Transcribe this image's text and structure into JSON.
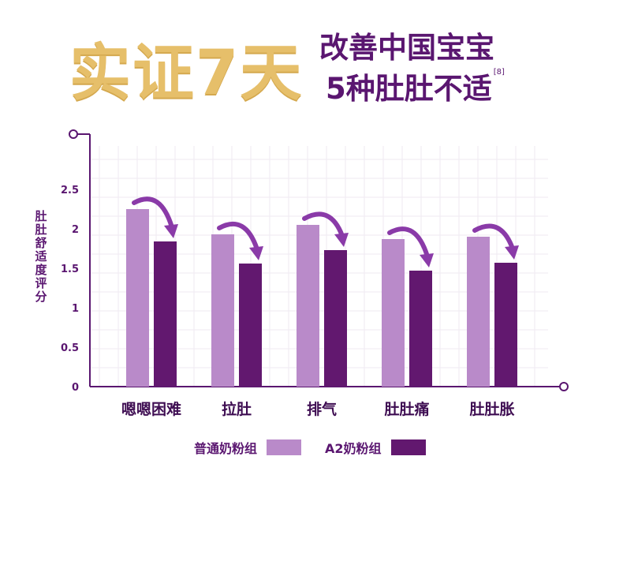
{
  "header": {
    "title": "实证7天",
    "subtitle_line1": "改善中国宝宝",
    "subtitle_line2": "5种肚肚不适",
    "citation": "[8]"
  },
  "colors": {
    "gold": "#e6bf6a",
    "purple_dark": "#62186f",
    "purple_light": "#b98ac9",
    "axis": "#5a1670",
    "arrow": "#8a3aa8"
  },
  "chart_data": {
    "type": "bar",
    "categories": [
      "嗯嗯困难",
      "拉肚",
      "排气",
      "肚肚痛",
      "肚肚胀"
    ],
    "series": [
      {
        "name": "普通奶粉组",
        "color": "#b98ac9",
        "values": [
          2.25,
          1.93,
          2.05,
          1.87,
          1.9
        ]
      },
      {
        "name": "A2奶粉组",
        "color": "#62186f",
        "values": [
          1.84,
          1.56,
          1.73,
          1.47,
          1.57
        ]
      }
    ],
    "ylabel": "肚肚舒适度评分",
    "yticks": [
      "0",
      "0.5",
      "1",
      "1.5",
      "2",
      "2.5"
    ],
    "ylim": [
      0,
      3
    ],
    "grid": true,
    "legend_position": "bottom"
  }
}
